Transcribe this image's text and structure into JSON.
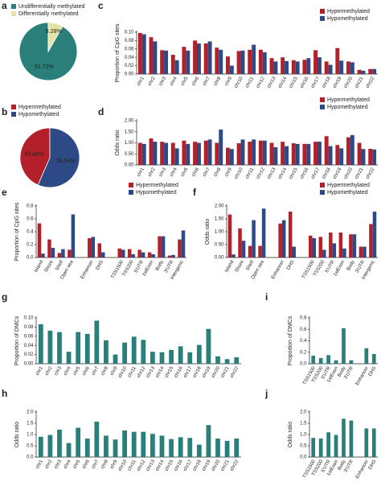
{
  "chart_data": [
    {
      "type": "pie",
      "label": "a",
      "categories": [
        "Undifferentially methylated",
        "Differentially methylated"
      ],
      "values": [
        91.72,
        8.28
      ],
      "value_labels": [
        "91.72%",
        "8.28%"
      ],
      "colors": [
        "#2a7f7a",
        "#e3e3a6"
      ],
      "legend": "upper left"
    },
    {
      "type": "pie",
      "label": "b",
      "categories": [
        "Hypermethylated",
        "Hypomethylated"
      ],
      "values": [
        43.46,
        56.54
      ],
      "value_labels": [
        "43.46%",
        "56.54%"
      ],
      "colors": [
        "#b3202a",
        "#2d4a86"
      ],
      "legend": "upper left"
    },
    {
      "type": "bar",
      "label": "c",
      "y_label": "Proportion of CpG sites",
      "legend": "upper right",
      "categories": [
        "chr1",
        "chr2",
        "chr3",
        "chr4",
        "chr5",
        "chr6",
        "chr7",
        "chr8",
        "chr9",
        "chr10",
        "chr11",
        "chr12",
        "chr13",
        "chr14",
        "chr15",
        "chr16",
        "chr17",
        "chr18",
        "chr19",
        "chr20",
        "chr21",
        "chr22"
      ],
      "series": [
        {
          "name": "Hypermethylated",
          "color": "#b3202a",
          "values": [
            0.098,
            0.088,
            0.057,
            0.046,
            0.065,
            0.08,
            0.073,
            0.063,
            0.042,
            0.055,
            0.058,
            0.058,
            0.038,
            0.04,
            0.033,
            0.034,
            0.057,
            0.03,
            0.062,
            0.03,
            0.01,
            0.012
          ]
        },
        {
          "name": "Hypomethylated",
          "color": "#2d4a86",
          "values": [
            0.095,
            0.078,
            0.056,
            0.033,
            0.056,
            0.073,
            0.078,
            0.058,
            0.02,
            0.056,
            0.07,
            0.052,
            0.03,
            0.031,
            0.03,
            0.038,
            0.04,
            0.022,
            0.032,
            0.028,
            0.008,
            0.012
          ]
        }
      ],
      "ylim": [
        0,
        0.1
      ],
      "yticks": [
        {
          "value": 0,
          "label": "0.00"
        },
        {
          "value": 0.02,
          "label": "0.02"
        },
        {
          "value": 0.04,
          "label": "0.04"
        },
        {
          "value": 0.06,
          "label": "0.06"
        },
        {
          "value": 0.08,
          "label": "0.08"
        },
        {
          "value": 0.1,
          "label": "0.10"
        }
      ]
    },
    {
      "type": "bar",
      "label": "d",
      "y_label": "Odds ratio",
      "legend": "upper right",
      "categories": [
        "chr1",
        "chr2",
        "chr3",
        "chr4",
        "chr5",
        "chr6",
        "chr7",
        "chr8",
        "chr9",
        "chr10",
        "chr11",
        "chr12",
        "chr13",
        "chr14",
        "chr15",
        "chr16",
        "chr17",
        "chr18",
        "chr19",
        "chr20",
        "chr21",
        "chr22"
      ],
      "series": [
        {
          "name": "Hypermethylated",
          "color": "#b3202a",
          "values": [
            1.0,
            1.2,
            1.05,
            1.0,
            1.1,
            1.05,
            1.1,
            1.0,
            0.78,
            0.98,
            1.05,
            1.1,
            1.0,
            1.05,
            0.98,
            0.95,
            1.05,
            1.3,
            0.9,
            1.25,
            1.0,
            0.73
          ]
        },
        {
          "name": "Hypomethylated",
          "color": "#2d4a86",
          "values": [
            0.95,
            1.05,
            1.0,
            0.75,
            0.95,
            1.0,
            1.15,
            1.6,
            0.72,
            1.15,
            1.15,
            1.1,
            0.8,
            0.85,
            0.95,
            0.95,
            1.05,
            0.85,
            0.75,
            1.35,
            0.72,
            0.7
          ]
        }
      ],
      "ylim": [
        0,
        2.0
      ],
      "yticks": [
        {
          "value": 0,
          "label": "0.00"
        },
        {
          "value": 0.5,
          "label": "0.50"
        },
        {
          "value": 1.0,
          "label": "1.00"
        },
        {
          "value": 1.5,
          "label": "1.50"
        },
        {
          "value": 2.0,
          "label": "2.00"
        }
      ]
    },
    {
      "type": "bar",
      "label": "e",
      "y_label": "Proportion of CpG sites",
      "legend": "upper right",
      "categories": [
        "Island",
        "Shore",
        "Shelf",
        "Open sea",
        null,
        "Enhancer",
        "DHS",
        null,
        "TSS1500",
        "TSS200",
        "5'UTR",
        "1stExon",
        "Body",
        "3'UTR",
        "Intergenic"
      ],
      "series": [
        {
          "name": "Hypermethylated",
          "color": "#b3202a",
          "values": [
            0.53,
            0.28,
            0.07,
            0.12,
            null,
            0.3,
            0.22,
            null,
            0.14,
            0.13,
            0.12,
            0.08,
            0.33,
            0.03,
            0.28
          ]
        },
        {
          "name": "Hypomethylated",
          "color": "#2d4a86",
          "values": [
            0.06,
            0.15,
            0.13,
            0.67,
            null,
            0.32,
            0.08,
            null,
            0.12,
            0.05,
            0.08,
            0.05,
            0.33,
            0.04,
            0.42
          ]
        }
      ],
      "ylim": [
        0,
        0.8
      ],
      "yticks": [
        {
          "value": 0,
          "label": "0.0"
        },
        {
          "value": 0.2,
          "label": "0.2"
        },
        {
          "value": 0.4,
          "label": "0.4"
        },
        {
          "value": 0.6,
          "label": "0.6"
        },
        {
          "value": 0.8,
          "label": "0.8"
        }
      ]
    },
    {
      "type": "bar",
      "label": "f",
      "y_label": "Odds ratio",
      "legend": "upper right",
      "categories": [
        "Island",
        "Shore",
        "Shelf",
        "Open sea",
        null,
        "Enhancer",
        "DHS",
        null,
        "TSS1500",
        "TSS200",
        "5'UTR",
        "1stExon",
        "Body",
        "3'UTR",
        "Intergenic"
      ],
      "series": [
        {
          "name": "Hypermethylated",
          "color": "#b3202a",
          "values": [
            1.67,
            1.13,
            0.45,
            0.45,
            null,
            1.32,
            1.78,
            null,
            0.85,
            0.8,
            0.97,
            0.97,
            0.9,
            0.42,
            1.3
          ]
        },
        {
          "name": "Hypomethylated",
          "color": "#2d4a86",
          "values": [
            0.12,
            0.65,
            1.45,
            1.9,
            null,
            1.45,
            0.42,
            null,
            0.75,
            0.3,
            0.55,
            0.35,
            0.9,
            0.42,
            1.78
          ]
        }
      ],
      "ylim": [
        0,
        2.0
      ],
      "yticks": [
        {
          "value": 0,
          "label": "0.00"
        },
        {
          "value": 0.5,
          "label": "0.50"
        },
        {
          "value": 1.0,
          "label": "1.00"
        },
        {
          "value": 1.5,
          "label": "1.50"
        },
        {
          "value": 2.0,
          "label": "2.00"
        }
      ]
    },
    {
      "type": "bar",
      "label": "g",
      "y_label": "Proportion of DMCs",
      "color": "#2a7f7a",
      "categories": [
        "chr1",
        "chr2",
        "chr3",
        "chr4",
        "chr5",
        "chr6",
        "chr7",
        "chr8",
        "chr9",
        "chr10",
        "chr11",
        "chr12",
        "chr13",
        "chr14",
        "chr15",
        "chr16",
        "chr17",
        "chr18",
        "chr19",
        "chr20",
        "chr21",
        "chr22"
      ],
      "values": [
        0.086,
        0.072,
        0.069,
        0.026,
        0.069,
        0.065,
        0.094,
        0.051,
        0.02,
        0.046,
        0.059,
        0.052,
        0.026,
        0.025,
        0.03,
        0.038,
        0.025,
        0.041,
        0.076,
        0.016,
        0.01,
        0.014
      ],
      "ylim": [
        0,
        0.1
      ],
      "yticks": [
        {
          "value": 0,
          "label": "0.00"
        },
        {
          "value": 0.02,
          "label": "0.02"
        },
        {
          "value": 0.04,
          "label": "0.04"
        },
        {
          "value": 0.06,
          "label": "0.06"
        },
        {
          "value": 0.08,
          "label": "0.08"
        },
        {
          "value": 0.1,
          "label": "0.10"
        }
      ]
    },
    {
      "type": "bar",
      "label": "h",
      "y_label": "Odds ratio",
      "color": "#2a7f7a",
      "categories": [
        "chr1",
        "chr2",
        "chr3",
        "chr4",
        "chr5",
        "chr6",
        "chr7",
        "chr8",
        "chr9",
        "chr10",
        "chr11",
        "chr12",
        "chr13",
        "chr14",
        "chr15",
        "chr16",
        "chr17",
        "chr18",
        "chr19",
        "chr20",
        "chr21",
        "chr22"
      ],
      "values": [
        0.9,
        0.98,
        1.22,
        0.62,
        1.3,
        0.82,
        1.57,
        0.95,
        0.78,
        1.18,
        1.12,
        1.12,
        1.03,
        0.95,
        0.8,
        0.88,
        0.85,
        0.55,
        1.42,
        0.82,
        0.72,
        0.82
      ],
      "ylim": [
        0,
        2.0
      ],
      "yticks": [
        {
          "value": 0,
          "label": "0.0"
        },
        {
          "value": 0.5,
          "label": "0.5"
        },
        {
          "value": 1.0,
          "label": "1.0"
        },
        {
          "value": 1.5,
          "label": "1.5"
        },
        {
          "value": 2.0,
          "label": "2.0"
        }
      ]
    },
    {
      "type": "bar",
      "label": "i",
      "y_label": "Proportion of DMCs",
      "color": "#2a7f7a",
      "categories": [
        "TSS1500",
        "TSS200",
        "5'UTR",
        "1stExon",
        "Body",
        "3'UTR",
        null,
        "Enhancer",
        "DHS"
      ],
      "values": [
        0.14,
        0.1,
        0.15,
        0.06,
        0.62,
        0.06,
        null,
        0.27,
        0.17
      ],
      "ylim": [
        0,
        0.8
      ],
      "yticks": [
        {
          "value": 0,
          "label": "0.0"
        },
        {
          "value": 0.2,
          "label": "0.2"
        },
        {
          "value": 0.4,
          "label": "0.4"
        },
        {
          "value": 0.6,
          "label": "0.6"
        },
        {
          "value": 0.8,
          "label": "0.8"
        }
      ]
    },
    {
      "type": "bar",
      "label": "j",
      "y_label": "Odds ratio",
      "color": "#2a7f7a",
      "categories": [
        "TSS1500",
        "TSS200",
        "5'UTR",
        "1stExon",
        "Body",
        "3'UTR",
        null,
        "Enhancer",
        "DHS"
      ],
      "values": [
        0.85,
        0.82,
        1.1,
        0.98,
        1.7,
        1.62,
        null,
        1.27,
        1.27
      ],
      "ylim": [
        0,
        2.0
      ],
      "yticks": [
        {
          "value": 0,
          "label": "0.0"
        },
        {
          "value": 0.5,
          "label": "0.5"
        },
        {
          "value": 1.0,
          "label": "1.0"
        },
        {
          "value": 1.5,
          "label": "1.5"
        },
        {
          "value": 2.0,
          "label": "2.0"
        }
      ]
    }
  ]
}
